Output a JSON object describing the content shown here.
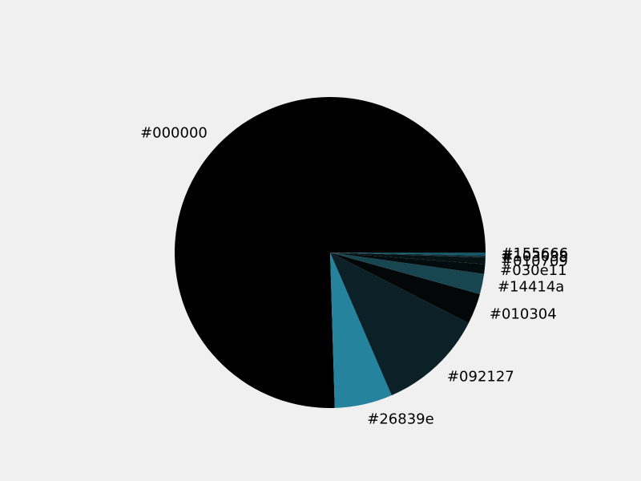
{
  "chart_data": {
    "type": "pie",
    "title": "",
    "slices": [
      {
        "label": "#000000",
        "value": 75.4,
        "color": "#000000"
      },
      {
        "label": "#26839e",
        "value": 6.0,
        "color": "#26839e"
      },
      {
        "label": "#092127",
        "value": 11.0,
        "color": "#0b2127"
      },
      {
        "label": "#010304",
        "value": 3.2,
        "color": "#030708"
      },
      {
        "label": "#14414a",
        "value": 2.1,
        "color": "#184650"
      },
      {
        "label": "#030e11",
        "value": 1.0,
        "color": "#020c0f"
      },
      {
        "label": "#010709",
        "value": 0.7,
        "color": "#061214"
      },
      {
        "label": "#103038",
        "value": 0.2,
        "color": "#103038"
      },
      {
        "label": "#155666",
        "value": 0.3,
        "color": "#155666"
      }
    ]
  }
}
